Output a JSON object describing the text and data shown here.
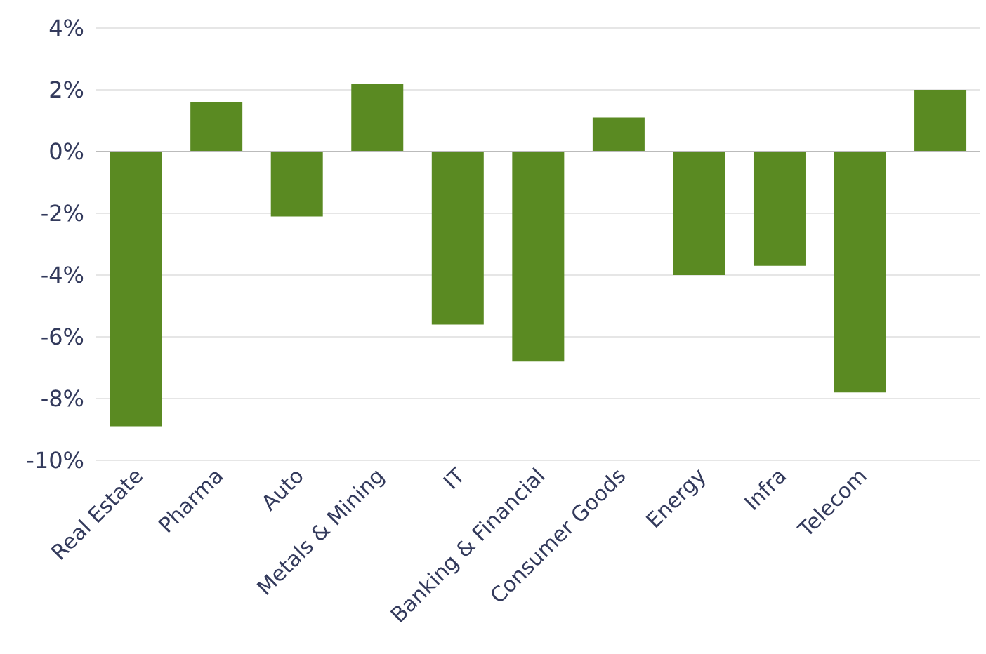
{
  "chart_data": {
    "type": "bar",
    "categories": [
      "Real Estate",
      "Pharma",
      "Auto",
      "Metals & Mining",
      "IT",
      "Banking & Financial",
      "Consumer Goods",
      "Energy",
      "Infra",
      "Telecom",
      null
    ],
    "values": [
      -8.9,
      1.6,
      -2.1,
      2.2,
      -5.6,
      -6.8,
      1.1,
      -4.0,
      -3.7,
      -7.8,
      2.0
    ],
    "color": "#5a8a22",
    "ylim": [
      -10,
      4
    ],
    "yticks": [
      {
        "value": -10,
        "label": "-10%"
      },
      {
        "value": -8,
        "label": "-8%"
      },
      {
        "value": -6,
        "label": "-6%"
      },
      {
        "value": -4,
        "label": "-4%"
      },
      {
        "value": -2,
        "label": "-2%"
      },
      {
        "value": 0,
        "label": "0%"
      },
      {
        "value": 2,
        "label": "2%"
      },
      {
        "value": 4,
        "label": "4%"
      }
    ],
    "grid": "y"
  }
}
